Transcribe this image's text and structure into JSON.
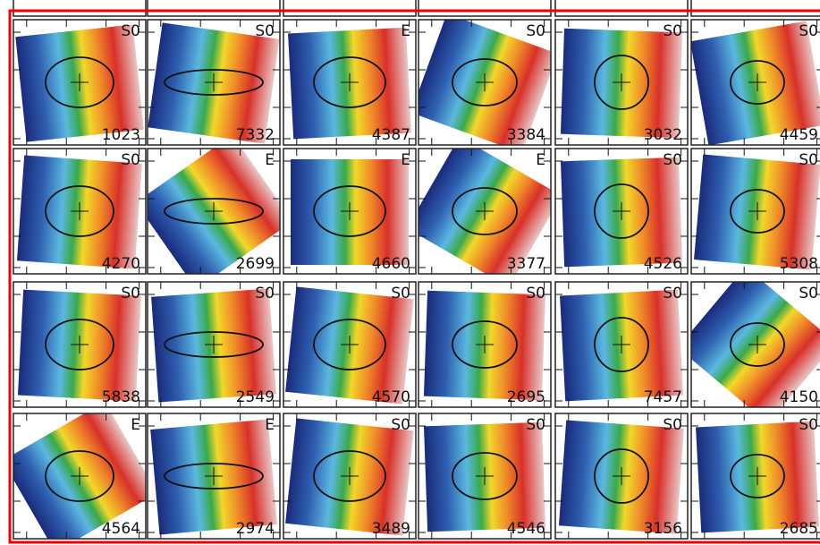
{
  "panels": [
    [
      {
        "type": "S0",
        "id": 1023
      },
      {
        "type": "S0",
        "id": 7332
      },
      {
        "type": "E",
        "id": 4387
      },
      {
        "type": "S0",
        "id": 3384
      },
      {
        "type": "S0",
        "id": 3032
      },
      {
        "type": "S0",
        "id": 4459
      }
    ],
    [
      {
        "type": "S0",
        "id": 4270
      },
      {
        "type": "E",
        "id": 2699
      },
      {
        "type": "E",
        "id": 4660
      },
      {
        "type": "E",
        "id": 3377
      },
      {
        "type": "S0",
        "id": 4526
      },
      {
        "type": "S0",
        "id": 5308
      }
    ],
    [
      {
        "type": "S0",
        "id": 5838
      },
      {
        "type": "S0",
        "id": 2549
      },
      {
        "type": "S0",
        "id": 4570
      },
      {
        "type": "S0",
        "id": 2695
      },
      {
        "type": "S0",
        "id": 7457
      },
      {
        "type": "S0",
        "id": 4150
      }
    ],
    [
      {
        "type": "E",
        "id": 4564
      },
      {
        "type": "E",
        "id": 2974
      },
      {
        "type": "S0",
        "id": 3489
      },
      {
        "type": "S0",
        "id": 4546
      },
      {
        "type": "S0",
        "id": 3156
      },
      {
        "type": "S0",
        "id": 2685
      }
    ]
  ]
}
